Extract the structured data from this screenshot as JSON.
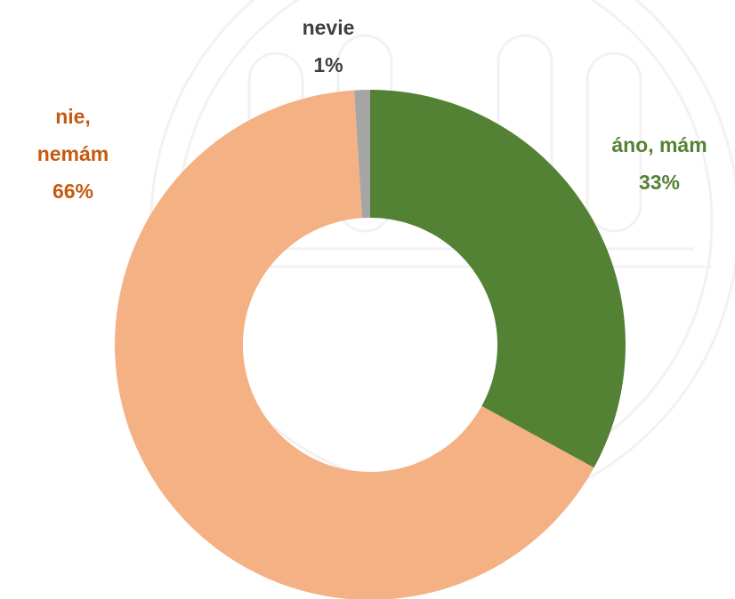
{
  "chart_data": {
    "type": "donut",
    "categories": [
      "áno, mám",
      "nie, nemám",
      "nevie"
    ],
    "values": [
      33,
      66,
      1
    ],
    "value_labels": [
      "33%",
      "66%",
      "1%"
    ],
    "colors": [
      "#548235",
      "#f4b183",
      "#a5a5a5"
    ],
    "label_colors": [
      "#548235",
      "#c55a11",
      "#404040"
    ]
  }
}
